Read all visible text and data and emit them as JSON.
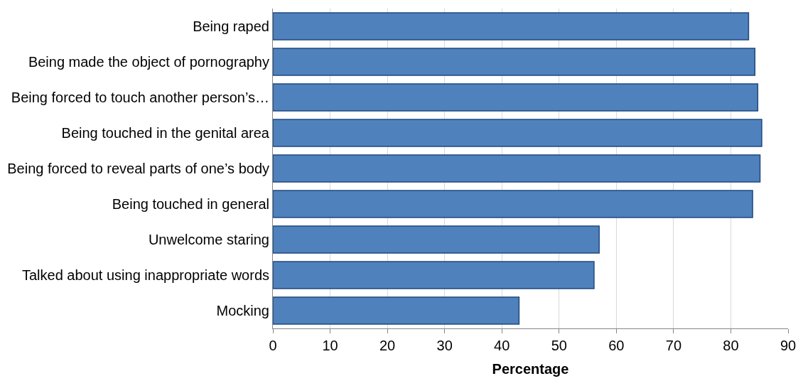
{
  "chart_data": {
    "type": "bar",
    "orientation": "horizontal",
    "xlabel": "Percentage",
    "categories": [
      "Being raped",
      "Being made the object of pornography",
      "Being forced to touch another person’s…",
      "Being touched in the genital area",
      "Being forced to reveal parts of one’s body",
      "Being touched in general",
      "Unwelcome staring",
      "Talked about using inappropriate words",
      "Mocking"
    ],
    "values": [
      83.1,
      84.2,
      84.7,
      85.4,
      85.1,
      83.8,
      57.0,
      56.1,
      43.0
    ],
    "color": "#4f81bd",
    "xlim": [
      0,
      90
    ],
    "xticks": [
      0,
      10,
      20,
      30,
      40,
      50,
      60,
      70,
      80,
      90
    ],
    "grid": "x"
  }
}
